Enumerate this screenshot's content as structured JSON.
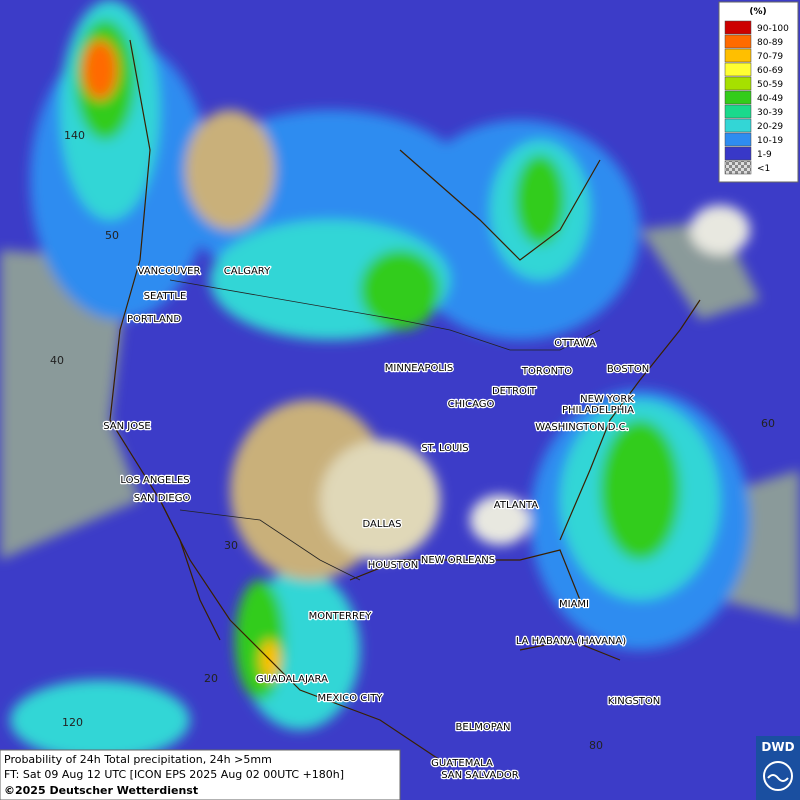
{
  "legend": {
    "title": "(%)",
    "items": [
      {
        "label": "90-100",
        "color": "#cc0000"
      },
      {
        "label": "80-89",
        "color": "#ff6a00"
      },
      {
        "label": "70-79",
        "color": "#ffbf00"
      },
      {
        "label": "60-69",
        "color": "#ffff33"
      },
      {
        "label": "50-59",
        "color": "#a6e000"
      },
      {
        "label": "40-49",
        "color": "#33cc1a"
      },
      {
        "label": "30-39",
        "color": "#1ad98c"
      },
      {
        "label": "20-29",
        "color": "#33d6d6"
      },
      {
        "label": "10-19",
        "color": "#2e8cf0"
      },
      {
        "label": "1-9",
        "color": "#3838c8"
      },
      {
        "label": "<1",
        "color": "#aaaaaa"
      }
    ]
  },
  "grid_labels": [
    "140",
    "50",
    "40",
    "60",
    "30",
    "20",
    "120",
    "80"
  ],
  "cities": [
    "VANCOUVER",
    "CALGARY",
    "SEATTLE",
    "PORTLAND",
    "SAN JOSE",
    "LOS ANGELES",
    "SAN DIEGO",
    "MINNEAPOLIS",
    "DETROIT",
    "TORONTO",
    "OTTAWA",
    "BOSTON",
    "NEW YORK",
    "PHILADELPHIA",
    "WASHINGTON D.C.",
    "CHICAGO",
    "ST. LOUIS",
    "ATLANTA",
    "DALLAS",
    "HOUSTON",
    "NEW ORLEANS",
    "MIAMI",
    "MONTERREY",
    "LA HABANA (HAVANA)",
    "GUADALAJARA",
    "MEXICO CITY",
    "KINGSTON",
    "BELMOPAN",
    "GUATEMALA",
    "SAN SALVADOR"
  ],
  "footer": {
    "line1": "Probability of 24h Total precipitation, 24h >5mm",
    "line2": "FT: Sat 09 Aug 12 UTC [ICON EPS 2025 Aug 02 00UTC +180h]",
    "line3": "©2025 Deutscher Wetterdienst"
  },
  "logo": "DWD"
}
